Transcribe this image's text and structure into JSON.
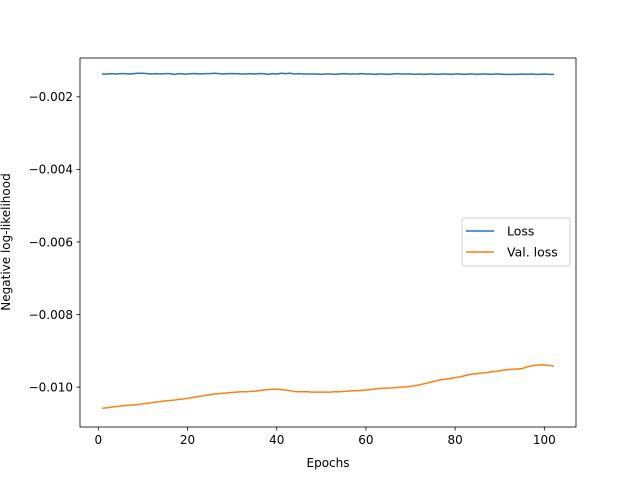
{
  "chart_data": {
    "type": "line",
    "title": "",
    "xlabel": "Epochs",
    "ylabel": "Negative log-likelihood",
    "xlim": [
      -4.1,
      107.1
    ],
    "ylim": [
      -0.0111,
      -0.00093
    ],
    "xticks": [
      0,
      20,
      40,
      60,
      80,
      100
    ],
    "xtick_labels": [
      "0",
      "20",
      "40",
      "60",
      "80",
      "100"
    ],
    "yticks": [
      -0.01,
      -0.008,
      -0.006,
      -0.004,
      -0.002
    ],
    "ytick_labels": [
      "−0.010",
      "−0.008",
      "−0.006",
      "−0.004",
      "−0.002"
    ],
    "grid": false,
    "legend_position": "center-right",
    "x": [
      1,
      2,
      3,
      4,
      5,
      6,
      7,
      8,
      9,
      10,
      11,
      12,
      13,
      14,
      15,
      16,
      17,
      18,
      19,
      20,
      21,
      22,
      23,
      24,
      25,
      26,
      27,
      28,
      29,
      30,
      31,
      32,
      33,
      34,
      35,
      36,
      37,
      38,
      39,
      40,
      41,
      42,
      43,
      44,
      45,
      46,
      47,
      48,
      49,
      50,
      51,
      52,
      53,
      54,
      55,
      56,
      57,
      58,
      59,
      60,
      61,
      62,
      63,
      64,
      65,
      66,
      67,
      68,
      69,
      70,
      71,
      72,
      73,
      74,
      75,
      76,
      77,
      78,
      79,
      80,
      81,
      82,
      83,
      84,
      85,
      86,
      87,
      88,
      89,
      90,
      91,
      92,
      93,
      94,
      95,
      96,
      97,
      98,
      99,
      100,
      101,
      102
    ],
    "series": [
      {
        "name": "Loss",
        "color": "#1f77b4",
        "values": [
          -0.00137,
          -0.00137,
          -0.00136,
          -0.00137,
          -0.00136,
          -0.00136,
          -0.00137,
          -0.00136,
          -0.00135,
          -0.00135,
          -0.00136,
          -0.00137,
          -0.00136,
          -0.00137,
          -0.00136,
          -0.00136,
          -0.00138,
          -0.00136,
          -0.00137,
          -0.00137,
          -0.00136,
          -0.00136,
          -0.00137,
          -0.00136,
          -0.00136,
          -0.00135,
          -0.00136,
          -0.00137,
          -0.00136,
          -0.00136,
          -0.00136,
          -0.00137,
          -0.00137,
          -0.00136,
          -0.00137,
          -0.00136,
          -0.00136,
          -0.00138,
          -0.00136,
          -0.00137,
          -0.00135,
          -0.00136,
          -0.00135,
          -0.00137,
          -0.00136,
          -0.00137,
          -0.00137,
          -0.00137,
          -0.00137,
          -0.00138,
          -0.00137,
          -0.00137,
          -0.00138,
          -0.00137,
          -0.00136,
          -0.00137,
          -0.00137,
          -0.00137,
          -0.00136,
          -0.00137,
          -0.00137,
          -0.00138,
          -0.00137,
          -0.00137,
          -0.00138,
          -0.00137,
          -0.00136,
          -0.00137,
          -0.00137,
          -0.00137,
          -0.00138,
          -0.00137,
          -0.00138,
          -0.00137,
          -0.00137,
          -0.00138,
          -0.00137,
          -0.00137,
          -0.00138,
          -0.00137,
          -0.00137,
          -0.00138,
          -0.00137,
          -0.00137,
          -0.00138,
          -0.00137,
          -0.00137,
          -0.00138,
          -0.00137,
          -0.00137,
          -0.00138,
          -0.00138,
          -0.00138,
          -0.00138,
          -0.00137,
          -0.00138,
          -0.00137,
          -0.00138,
          -0.00138,
          -0.00137,
          -0.00138,
          -0.00138
        ]
      },
      {
        "name": "Val. loss",
        "color": "#ff7f0e",
        "values": [
          -0.01058,
          -0.01057,
          -0.01055,
          -0.01054,
          -0.01052,
          -0.01051,
          -0.0105,
          -0.01049,
          -0.01048,
          -0.01046,
          -0.01045,
          -0.01043,
          -0.01041,
          -0.0104,
          -0.01038,
          -0.01037,
          -0.01036,
          -0.01034,
          -0.01033,
          -0.01031,
          -0.01029,
          -0.01027,
          -0.01025,
          -0.01023,
          -0.01021,
          -0.01019,
          -0.01018,
          -0.01017,
          -0.01016,
          -0.01015,
          -0.01014,
          -0.01013,
          -0.01013,
          -0.01012,
          -0.01011,
          -0.0101,
          -0.01008,
          -0.01007,
          -0.01006,
          -0.01006,
          -0.01007,
          -0.01008,
          -0.0101,
          -0.01012,
          -0.01013,
          -0.01013,
          -0.01013,
          -0.01014,
          -0.01014,
          -0.01014,
          -0.01014,
          -0.01014,
          -0.01013,
          -0.01013,
          -0.01012,
          -0.01011,
          -0.0101,
          -0.0101,
          -0.01009,
          -0.01008,
          -0.01007,
          -0.01005,
          -0.01004,
          -0.01003,
          -0.01003,
          -0.01002,
          -0.01001,
          -0.01,
          -0.00999,
          -0.00998,
          -0.00996,
          -0.00994,
          -0.00991,
          -0.00988,
          -0.00985,
          -0.00982,
          -0.00979,
          -0.00978,
          -0.00976,
          -0.00974,
          -0.00972,
          -0.00969,
          -0.00966,
          -0.00964,
          -0.00963,
          -0.00961,
          -0.0096,
          -0.00958,
          -0.00957,
          -0.00955,
          -0.00953,
          -0.00952,
          -0.00951,
          -0.0095,
          -0.00949,
          -0.00945,
          -0.00942,
          -0.0094,
          -0.00939,
          -0.00939,
          -0.0094,
          -0.00942
        ]
      }
    ]
  }
}
